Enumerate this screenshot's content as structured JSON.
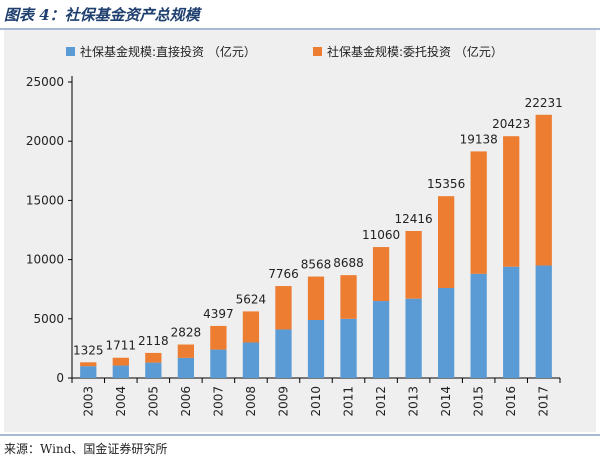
{
  "title": "图表 4：社保基金资产总规模",
  "source": "来源：Wind、国金证券研究所",
  "colors": {
    "direct": "#5b9bd5",
    "entrusted": "#ed7d31"
  },
  "chart_data": {
    "type": "bar",
    "stacked": true,
    "categories": [
      "2003",
      "2004",
      "2005",
      "2006",
      "2007",
      "2008",
      "2009",
      "2010",
      "2011",
      "2012",
      "2013",
      "2014",
      "2015",
      "2016",
      "2017"
    ],
    "series": [
      {
        "name": "社保基金规模:直接投资 （亿元）",
        "values": [
          1000,
          1050,
          1300,
          1700,
          2400,
          3000,
          4100,
          4900,
          5000,
          6500,
          6700,
          7600,
          8800,
          9400,
          9500
        ]
      },
      {
        "name": "社保基金规模:委托投资 （亿元）",
        "values": [
          325,
          661,
          818,
          1128,
          1997,
          2624,
          3666,
          3668,
          3688,
          4560,
          5716,
          7756,
          10338,
          11023,
          12731
        ]
      }
    ],
    "totals": [
      1325,
      1711,
      2118,
      2828,
      4397,
      5624,
      7766,
      8568,
      8688,
      11060,
      12416,
      15356,
      19138,
      20423,
      22231
    ],
    "ylim": [
      0,
      25000
    ],
    "yticks": [
      0,
      5000,
      10000,
      15000,
      20000,
      25000
    ],
    "xlabel": "",
    "ylabel": "",
    "grid": false,
    "legend_position": "top"
  }
}
